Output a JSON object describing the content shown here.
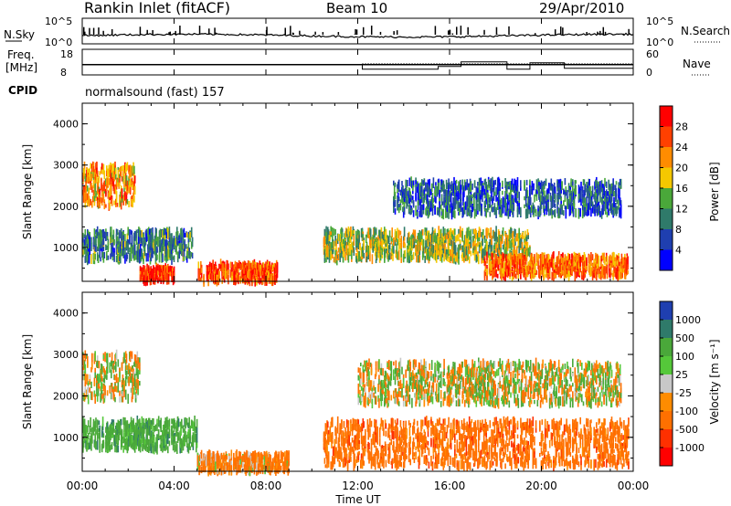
{
  "header": {
    "station": "Rankin Inlet (fitACF)",
    "beam": "Beam 10",
    "date": "29/Apr/2010"
  },
  "top_panel": {
    "left_label": "N.Sky",
    "left_ticks": [
      "10^5",
      "10^0"
    ],
    "right_label": "N.Search",
    "right_ticks": [
      "10^5",
      "10^0"
    ]
  },
  "freq_panel": {
    "left_label_line1": "Freq.",
    "left_label_line2": "[MHz]",
    "left_ticks": [
      "18",
      "8"
    ],
    "right_label": "Nave",
    "right_ticks": [
      "60",
      "0"
    ],
    "cpid_label": "CPID",
    "cpid_value": "normalsound (fast) 157"
  },
  "power_panel": {
    "ylabel": "Slant Range [km]",
    "yticks": [
      "4000",
      "3000",
      "2000",
      "1000"
    ],
    "colorbar_label": "Power [dB]",
    "colorbar_ticks": [
      "28",
      "24",
      "20",
      "16",
      "12",
      "8",
      "4"
    ],
    "colorbar_colors": [
      "#ff0000",
      "#ff4000",
      "#ff8c00",
      "#f5c800",
      "#4aa83a",
      "#2f7a6a",
      "#1f3fb0",
      "#0000ff"
    ]
  },
  "velocity_panel": {
    "ylabel": "Slant Range [km]",
    "yticks": [
      "4000",
      "3000",
      "2000",
      "1000"
    ],
    "colorbar_label": "Velocity [m s⁻¹]",
    "colorbar_ticks": [
      "1000",
      "500",
      "100",
      "25",
      "-25",
      "-100",
      "-500",
      "-1000"
    ],
    "colorbar_colors": [
      "#1f3fb0",
      "#2f7a6a",
      "#4aa83a",
      "#55c83a",
      "#c8c8c8",
      "#ff8c00",
      "#ff7000",
      "#ff3000",
      "#ff0000"
    ]
  },
  "x_axis": {
    "ticks": [
      "00:00",
      "04:00",
      "08:00",
      "12:00",
      "16:00",
      "20:00",
      "00:00"
    ],
    "label": "Time UT"
  },
  "chart_data": {
    "type": "heatmap",
    "title": "Rankin Inlet (fitACF)",
    "subtitle": "Beam 10",
    "date": "29/Apr/2010",
    "xlabel": "Time UT",
    "ylabel": "Slant Range [km]",
    "xlim_hours": [
      0,
      24
    ],
    "ylim_km": [
      180,
      4500
    ],
    "frequency_mhz": {
      "dominant": 12,
      "ylim": [
        8,
        18
      ]
    },
    "power_echo_regions": [
      {
        "start_h": 0.0,
        "end_h": 2.3,
        "range_min_km": 2000,
        "range_max_km": 3000,
        "power_db": 24
      },
      {
        "start_h": 0.0,
        "end_h": 4.8,
        "range_min_km": 700,
        "range_max_km": 1400,
        "power_db": 12
      },
      {
        "start_h": 2.5,
        "end_h": 4.0,
        "range_min_km": 180,
        "range_max_km": 500,
        "power_db": 30
      },
      {
        "start_h": 5.0,
        "end_h": 8.5,
        "range_min_km": 180,
        "range_max_km": 600,
        "power_db": 28
      },
      {
        "start_h": 10.5,
        "end_h": 19.5,
        "range_min_km": 700,
        "range_max_km": 1400,
        "power_db": 18
      },
      {
        "start_h": 17.5,
        "end_h": 23.8,
        "range_min_km": 300,
        "range_max_km": 800,
        "power_db": 26
      },
      {
        "start_h": 13.5,
        "end_h": 23.5,
        "range_min_km": 1800,
        "range_max_km": 2600,
        "power_db": 10
      }
    ],
    "velocity_echo_regions": [
      {
        "start_h": 0.0,
        "end_h": 2.5,
        "range_min_km": 1900,
        "range_max_km": 3000,
        "velocity_ms": 0
      },
      {
        "start_h": 0.0,
        "end_h": 5.0,
        "range_min_km": 700,
        "range_max_km": 1400,
        "velocity_ms": 300
      },
      {
        "start_h": 5.0,
        "end_h": 9.0,
        "range_min_km": 180,
        "range_max_km": 600,
        "velocity_ms": -200
      },
      {
        "start_h": 10.5,
        "end_h": 23.8,
        "range_min_km": 300,
        "range_max_km": 1400,
        "velocity_ms": -300
      },
      {
        "start_h": 12.0,
        "end_h": 23.5,
        "range_min_km": 1800,
        "range_max_km": 2800,
        "velocity_ms": 0
      }
    ]
  }
}
